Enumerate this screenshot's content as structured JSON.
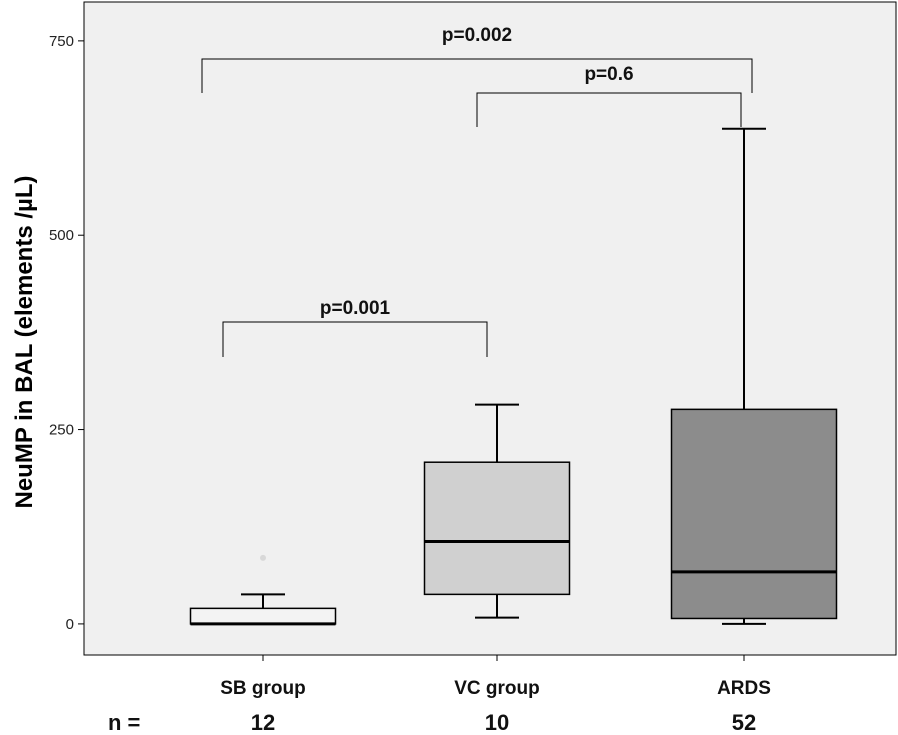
{
  "chart_data": {
    "type": "box",
    "ylabel": "NeuMP in BAL (elements /µL)",
    "ylim": [
      -40,
      800
    ],
    "yticks": [
      0,
      250,
      500,
      750
    ],
    "n_label": "n =",
    "groups": [
      {
        "name": "SB group",
        "n": "12",
        "whisker_low": 0,
        "q1": 0,
        "median": 0,
        "q3": 20,
        "whisker_high": 38,
        "outliers": [
          85
        ],
        "color": "#f3f3f3"
      },
      {
        "name": "VC group",
        "n": "10",
        "whisker_low": 8,
        "q1": 38,
        "median": 106,
        "q3": 208,
        "whisker_high": 282,
        "outliers": [],
        "color": "#d0d0d0"
      },
      {
        "name": "ARDS",
        "n": "52",
        "whisker_low": 0,
        "q1": 7,
        "median": 67,
        "q3": 276,
        "whisker_high": 637,
        "outliers": [],
        "color": "#8c8c8c"
      }
    ],
    "comparisons": [
      {
        "from": 0,
        "to": 1,
        "label": "p=0.001"
      },
      {
        "from": 1,
        "to": 2,
        "label": "p=0.6"
      },
      {
        "from": 0,
        "to": 2,
        "label": "p=0.002"
      }
    ],
    "colors": {
      "plot_bg": "#f0f0f0",
      "axis": "#000000"
    }
  }
}
